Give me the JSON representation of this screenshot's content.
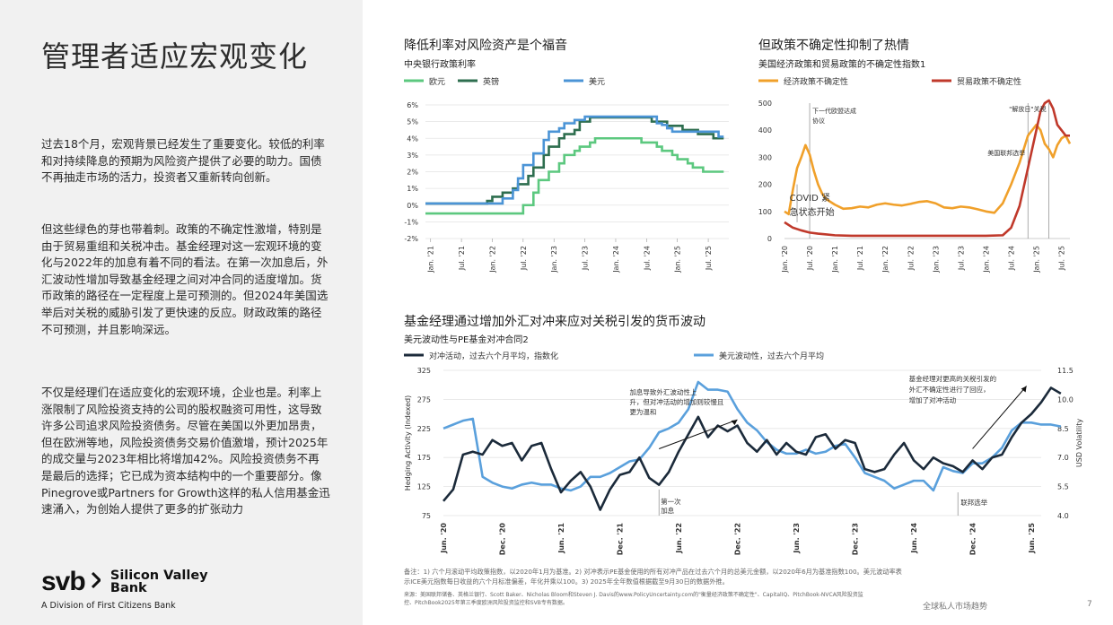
{
  "left": {
    "title": "管理者适应宏观变化",
    "para1": "过去18个月，宏观背景已经发生了重要变化。较低的利率和对持续降息的预期为风险资产提供了必要的助力。国债不再抽走市场的活力，投资者又重新转向创新。",
    "para2": "但这些绿色的芽也带着刺。政策的不确定性激增，特别是由于贸易重组和关税冲击。基金经理对这一宏观环境的变化与2022年的加息有着不同的看法。在第一次加息后，外汇波动性增加导致基金经理之间对冲合同的适度增加。货币政策的路径在一定程度上是可预测的。但2024年美国选举后对关税的威胁引发了更快速的反应。财政政策的路径不可预测，并且影响深远。",
    "para3": "不仅是经理们在适应变化的宏观环境，企业也是。利率上涨限制了风险投资支持的公司的股权融资可用性，这导致许多公司追求风险投资债务。尽管在美国以外更加昂贵，但在欧洲等地，风险投资债务交易价值激增，预计2025年的成交量与2023年相比将增加42%。风险投资债务不再是最后的选择；它已成为资本结构中的一个重要部分。像Pinegrove或Partners for Growth这样的私人信用基金迅速涌入，为创始人提供了更多的扩张动力"
  },
  "logo": {
    "mark": "svb",
    "line1": "Silicon Valley",
    "line2": "Bank",
    "division": "A Division of First Citizens Bank"
  },
  "footer": {
    "report": "全球私人市场趋势",
    "page": "7"
  },
  "notes": {
    "line1": "备注：1) 六个月滚动平均政策指数，以2020年1月为基准。2) 对冲表示PE基金使用的所有对冲产品在过去六个月的总美元金额，以2020年6月为基准指数100。美元波动率表示ICE美元指数每日收益的六个月标准偏差，年化并乘以100。3) 2025年全年数值根据截至9月30日的数据外推。",
    "line2": "来源：美国联邦储备、英格兰银行、Scott Baker、Nicholas Bloom和Steven J. Davis的www.PolicyUncertainty.com的\"衡量经济政策不确定性\"、CapitalIQ、PitchBook-NVCA风险投资监控、PitchBook2025年第三季度欧洲风险投资监控和SVB专有数据。"
  },
  "colors": {
    "euro": "#5cc87f",
    "gbp": "#2e6e4f",
    "usd": "#4b94d6",
    "econ": "#f0a02a",
    "trade": "#c0392b",
    "hedge": "#1b2a3a",
    "usdvol": "#5aa0dc"
  },
  "chart_data": [
    {
      "type": "line",
      "title": "降低利率对风险资产是个福音",
      "subtitle": "中央银行政策利率",
      "ylim": [
        -2,
        6
      ],
      "yticks": [
        "6%",
        "5%",
        "4%",
        "3%",
        "2%",
        "1%",
        "0%",
        "-1%",
        "-2%"
      ],
      "xticks": [
        "Jan. '21",
        "Jul. '21",
        "Jan. '22",
        "Jul. '22",
        "Jan. '23",
        "Jul. '23",
        "Jan. '24",
        "Jul. '24",
        "Jan. '25",
        "Jul. '25"
      ],
      "series": [
        {
          "name": "欧元",
          "x": [
            "2020-12",
            "2022-06",
            "2022-07",
            "2022-09",
            "2022-10",
            "2022-12",
            "2023-02",
            "2023-03",
            "2023-05",
            "2023-06",
            "2023-08",
            "2023-09",
            "2024-05",
            "2024-06",
            "2024-08",
            "2024-09",
            "2024-10",
            "2024-12",
            "2025-01",
            "2025-03",
            "2025-04",
            "2025-06",
            "2025-10"
          ],
          "values": [
            -0.5,
            -0.5,
            0,
            0.75,
            1.5,
            2.0,
            2.5,
            3.0,
            3.25,
            3.5,
            3.75,
            4.0,
            4.0,
            3.75,
            3.75,
            3.5,
            3.25,
            3.0,
            2.75,
            2.5,
            2.25,
            2.0,
            2.0
          ]
        },
        {
          "name": "英镑",
          "x": [
            "2020-12",
            "2021-11",
            "2021-12",
            "2022-01",
            "2022-03",
            "2022-05",
            "2022-06",
            "2022-08",
            "2022-09",
            "2022-11",
            "2022-12",
            "2023-02",
            "2023-03",
            "2023-05",
            "2023-06",
            "2023-08",
            "2024-07",
            "2024-08",
            "2024-10",
            "2024-11",
            "2025-01",
            "2025-02",
            "2025-04",
            "2025-05",
            "2025-07",
            "2025-08",
            "2025-10"
          ],
          "values": [
            0.1,
            0.1,
            0.25,
            0.5,
            0.75,
            1.0,
            1.25,
            1.75,
            2.25,
            3.0,
            3.5,
            4.0,
            4.25,
            4.5,
            5.0,
            5.25,
            5.25,
            5.0,
            5.0,
            4.75,
            4.75,
            4.5,
            4.5,
            4.25,
            4.25,
            4.0,
            4.0
          ]
        },
        {
          "name": "美元",
          "x": [
            "2020-12",
            "2022-02",
            "2022-03",
            "2022-05",
            "2022-06",
            "2022-07",
            "2022-09",
            "2022-11",
            "2022-12",
            "2023-02",
            "2023-03",
            "2023-05",
            "2023-07",
            "2024-08",
            "2024-09",
            "2024-10",
            "2024-11",
            "2024-12",
            "2025-08",
            "2025-09",
            "2025-10"
          ],
          "values": [
            0.1,
            0.1,
            0.4,
            0.9,
            1.6,
            2.4,
            3.1,
            3.9,
            4.4,
            4.6,
            4.9,
            5.1,
            5.3,
            5.3,
            4.9,
            4.8,
            4.6,
            4.4,
            4.4,
            4.1,
            4.1
          ]
        }
      ]
    },
    {
      "type": "line",
      "title": "但政策不确定性抑制了热情",
      "subtitle": "美国经济政策和贸易政策的不确定性指数1",
      "ylim": [
        0,
        500
      ],
      "yticks": [
        "500",
        "400",
        "300",
        "200",
        "100",
        "0"
      ],
      "xticks": [
        "Jan. '20",
        "Jul. '20",
        "Jan. '21",
        "Jul. '21",
        "Jan. '22",
        "Jul. '22",
        "Jan. '23",
        "Jul. '23",
        "Jan. '24",
        "Jul. '24",
        "Jan. '25",
        "Jul. '25"
      ],
      "annotations": [
        "下一代欧盟达成协议",
        "COVID 紧急状态开始",
        "美国联邦选举",
        "\"解放日\"关税"
      ],
      "series": [
        {
          "name": "经济政策不确定性",
          "x": [
            0,
            1,
            2,
            3,
            4,
            5,
            6,
            7,
            8,
            9,
            10,
            11,
            12,
            14,
            16,
            18,
            20,
            22,
            24,
            26,
            28,
            30,
            32,
            34,
            36,
            38,
            40,
            42,
            44,
            46,
            48,
            50,
            52,
            54,
            56,
            58,
            60,
            61,
            62,
            63,
            64,
            65,
            66,
            67,
            68
          ],
          "values": [
            100,
            90,
            180,
            260,
            300,
            345,
            310,
            250,
            200,
            165,
            145,
            135,
            125,
            110,
            112,
            118,
            115,
            125,
            130,
            125,
            122,
            128,
            135,
            138,
            130,
            115,
            112,
            118,
            115,
            108,
            100,
            95,
            130,
            200,
            280,
            380,
            420,
            400,
            350,
            330,
            300,
            345,
            370,
            380,
            350
          ]
        },
        {
          "name": "贸易政策不确定性",
          "x": [
            0,
            2,
            4,
            6,
            8,
            10,
            12,
            16,
            20,
            24,
            28,
            32,
            36,
            40,
            44,
            48,
            52,
            54,
            56,
            58,
            60,
            61,
            62,
            63,
            64,
            65,
            66,
            67,
            68
          ],
          "values": [
            60,
            40,
            30,
            22,
            18,
            15,
            12,
            10,
            10,
            10,
            10,
            10,
            10,
            10,
            10,
            10,
            12,
            40,
            120,
            260,
            400,
            470,
            500,
            510,
            480,
            420,
            400,
            380,
            380
          ]
        }
      ]
    },
    {
      "type": "line",
      "title": "基金经理通过增加外汇对冲来应对关税引发的货币波动",
      "subtitle": "美元波动性与PE基金对冲合同2",
      "ylim": [
        75,
        325
      ],
      "yticks": [
        "325",
        "275",
        "225",
        "175",
        "125",
        "75"
      ],
      "ylabel": "Hedging Activity (Indexed)",
      "y2lim": [
        4.0,
        11.5
      ],
      "y2ticks": [
        "11.5",
        "10.0",
        "8.5",
        "7.0",
        "5.5",
        "4.0"
      ],
      "y2label": "USD Volatility",
      "xticks": [
        "Jun. '20",
        "Dec. '20",
        "Jun. '21",
        "Dec. '21",
        "Jun. '22",
        "Dec. '22",
        "Jun. '23",
        "Dec. '23",
        "Jun. '24",
        "Dec. '24",
        "Jun. '25"
      ],
      "annotations": [
        "加息导致外汇波动性上升，但对冲活动的增加则较慢且更为温和",
        "第一次加息",
        "基金经理对更高的关税引发的外汇不确定性进行了回应，增加了对冲活动",
        "联邦选举"
      ],
      "series": [
        {
          "name": "对冲活动，过去六个月平均，指数化",
          "x": [
            0,
            1,
            2,
            3,
            4,
            5,
            6,
            7,
            8,
            9,
            10,
            11,
            12,
            13,
            14,
            15,
            16,
            17,
            18,
            19,
            20,
            21,
            22,
            23,
            24,
            25,
            26,
            27,
            28,
            29,
            30,
            31,
            32,
            33,
            34,
            35,
            36,
            37,
            38,
            39,
            40,
            41,
            42,
            43,
            44,
            45,
            46,
            47,
            48,
            49,
            50,
            51,
            52,
            53,
            54,
            55,
            56,
            57,
            58,
            59,
            60,
            61,
            62,
            63
          ],
          "values": [
            100,
            120,
            180,
            185,
            180,
            205,
            195,
            200,
            170,
            195,
            200,
            155,
            115,
            135,
            150,
            125,
            85,
            120,
            145,
            150,
            175,
            140,
            128,
            150,
            185,
            215,
            245,
            210,
            230,
            220,
            230,
            200,
            185,
            205,
            180,
            200,
            185,
            180,
            210,
            215,
            190,
            205,
            200,
            155,
            150,
            155,
            180,
            200,
            170,
            155,
            175,
            165,
            160,
            150,
            170,
            155,
            175,
            180,
            210,
            235,
            250,
            270,
            295,
            285
          ]
        },
        {
          "name": "美元波动性，过去六个月平均",
          "x": [
            0,
            1,
            2,
            3,
            4,
            5,
            6,
            7,
            8,
            9,
            10,
            11,
            12,
            13,
            14,
            15,
            16,
            17,
            18,
            19,
            20,
            21,
            22,
            23,
            24,
            25,
            26,
            27,
            28,
            29,
            30,
            31,
            32,
            33,
            34,
            35,
            36,
            37,
            38,
            39,
            40,
            41,
            42,
            43,
            44,
            45,
            46,
            47,
            48,
            49,
            50,
            51,
            52,
            53,
            54,
            55,
            56,
            57,
            58,
            59,
            60,
            61,
            62,
            63
          ],
          "values": [
            8.5,
            8.7,
            8.9,
            9.0,
            6.0,
            5.7,
            5.5,
            5.4,
            5.6,
            5.7,
            5.6,
            5.6,
            5.4,
            5.3,
            5.5,
            6.0,
            6.0,
            6.2,
            6.5,
            6.8,
            6.9,
            7.5,
            8.3,
            8.5,
            8.8,
            9.5,
            10.9,
            10.5,
            10.5,
            10.4,
            9.5,
            8.8,
            8.4,
            7.8,
            7.4,
            7.2,
            7.2,
            7.4,
            7.2,
            7.3,
            7.6,
            7.7,
            7.0,
            6.2,
            6.0,
            5.8,
            5.4,
            5.6,
            5.8,
            5.8,
            5.3,
            6.5,
            6.3,
            6.2,
            6.7,
            6.7,
            7.0,
            7.5,
            8.4,
            8.8,
            8.8,
            8.7,
            8.7,
            8.6
          ]
        }
      ]
    }
  ]
}
